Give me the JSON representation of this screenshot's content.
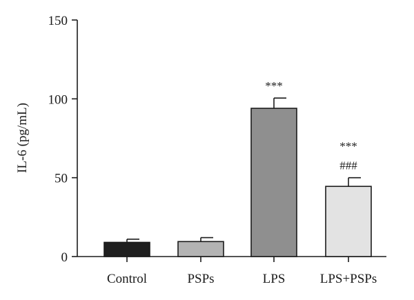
{
  "chart_data": {
    "type": "bar",
    "ylabel": "IL-6 (pg/mL)",
    "xlabel": "",
    "ylim": [
      0,
      150
    ],
    "yticks": [
      0,
      50,
      100,
      150
    ],
    "categories": [
      "Control",
      "PSPs",
      "LPS",
      "LPS+PSPs"
    ],
    "values": [
      9,
      9.5,
      94,
      44.5
    ],
    "errors": [
      2,
      2.5,
      6.5,
      5.5
    ],
    "colors": [
      "#1f1f1f",
      "#b3b3b3",
      "#8f8f8f",
      "#e3e3e3"
    ],
    "annotations": [
      {
        "category": "LPS",
        "lines": [
          "***"
        ]
      },
      {
        "category": "LPS+PSPs",
        "lines": [
          "***",
          "###"
        ]
      }
    ],
    "grid": false,
    "legend": "none"
  }
}
